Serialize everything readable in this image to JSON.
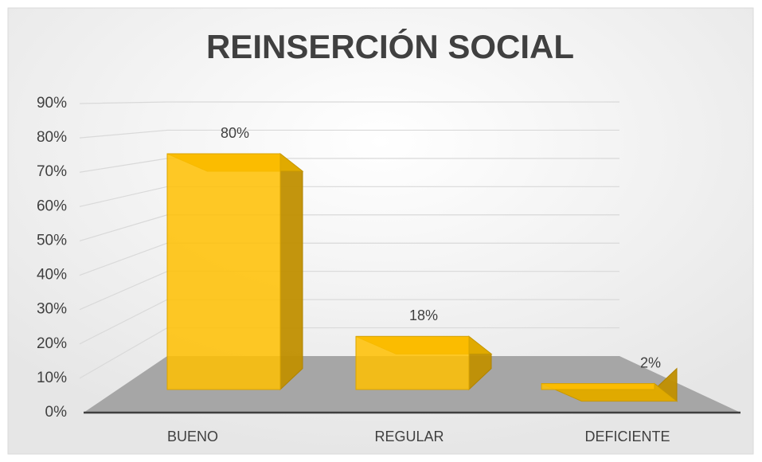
{
  "chart_data": {
    "type": "bar3d",
    "title": "REINSERCIÓN SOCIAL",
    "categories": [
      "BUENO",
      "REGULAR",
      "DEFICIENTE"
    ],
    "values": [
      80,
      18,
      2
    ],
    "value_labels": [
      "80%",
      "18%",
      "2%"
    ],
    "color": "#ffc000",
    "ylim": [
      0,
      90
    ],
    "yticks": [
      {
        "value": 0,
        "label": "0%"
      },
      {
        "value": 10,
        "label": "10%"
      },
      {
        "value": 20,
        "label": "20%"
      },
      {
        "value": 30,
        "label": "30%"
      },
      {
        "value": 40,
        "label": "40%"
      },
      {
        "value": 50,
        "label": "50%"
      },
      {
        "value": 60,
        "label": "60%"
      },
      {
        "value": 70,
        "label": "70%"
      },
      {
        "value": 80,
        "label": "80%"
      },
      {
        "value": 90,
        "label": "90%"
      }
    ],
    "grid": true
  }
}
